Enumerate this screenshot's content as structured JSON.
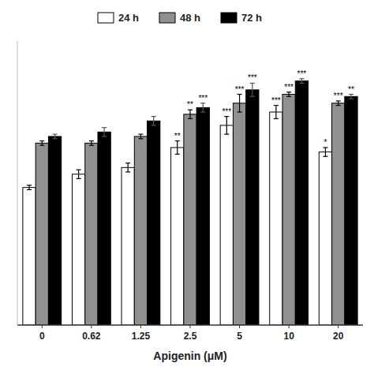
{
  "chart_data": {
    "type": "bar",
    "categories": [
      "0",
      "0.62",
      "1.25",
      "2.5",
      "5",
      "10",
      "20"
    ],
    "series": [
      {
        "name": "24 h",
        "color": "#ffffff",
        "values": [
          0.62,
          0.68,
          0.71,
          0.8,
          0.9,
          0.96,
          0.78
        ],
        "errors": [
          0.01,
          0.02,
          0.02,
          0.03,
          0.04,
          0.03,
          0.02
        ],
        "significance": [
          null,
          null,
          null,
          "**",
          "***",
          "***",
          "*"
        ]
      },
      {
        "name": "48 h",
        "color": "#909090",
        "values": [
          0.82,
          0.82,
          0.85,
          0.95,
          1.0,
          1.04,
          1.0
        ],
        "errors": [
          0.01,
          0.01,
          0.01,
          0.02,
          0.04,
          0.01,
          0.01
        ],
        "significance": [
          null,
          null,
          null,
          "**",
          "***",
          "***",
          "***"
        ]
      },
      {
        "name": "72 h",
        "color": "#000000",
        "values": [
          0.85,
          0.87,
          0.92,
          0.98,
          1.06,
          1.1,
          1.03
        ],
        "errors": [
          0.01,
          0.02,
          0.02,
          0.02,
          0.03,
          0.01,
          0.01
        ],
        "significance": [
          null,
          null,
          null,
          "***",
          "***",
          "***",
          "**"
        ]
      }
    ],
    "xlabel": "Apigenin (μM)",
    "ylim": [
      0.0,
      1.28
    ],
    "yticks": [],
    "tick_labels": "x",
    "grid": false,
    "legend": "top"
  }
}
